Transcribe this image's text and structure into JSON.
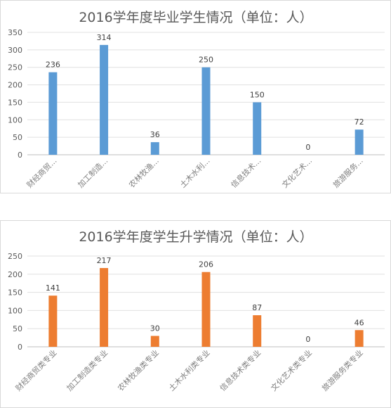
{
  "chart_data": [
    {
      "type": "bar",
      "title": "2016学年度毕业学生情况（单位：人）",
      "categories": [
        "财经商贸...",
        "加工制造...",
        "农林牧渔...",
        "土木水利...",
        "信息技术...",
        "文化艺术...",
        "旅游服务..."
      ],
      "values": [
        236,
        314,
        36,
        250,
        150,
        0,
        72
      ],
      "ylim": [
        0,
        350
      ],
      "yticks": [
        "0",
        "50",
        "100",
        "150",
        "200",
        "250",
        "300",
        "350"
      ],
      "grid": true,
      "color": "#5b9bd5"
    },
    {
      "type": "bar",
      "title": "2016学年度学生升学情况（单位：人）",
      "categories": [
        "财经商贸类专业",
        "加工制造类专业",
        "农林牧渔类专业",
        "土木水利类专业",
        "信息技术类专业",
        "文化艺术类专业",
        "旅游服务类专业"
      ],
      "values": [
        141,
        217,
        30,
        206,
        87,
        0,
        46
      ],
      "ylim": [
        0,
        250
      ],
      "yticks": [
        "0",
        "50",
        "100",
        "150",
        "200",
        "250"
      ],
      "grid": true,
      "color": "#ed7d31"
    }
  ]
}
